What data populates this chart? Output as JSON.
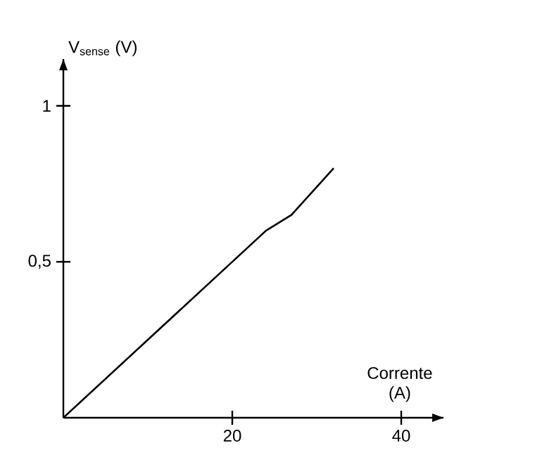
{
  "chart_data": {
    "type": "line",
    "xlabel": "Corrente (A)",
    "ylabel": "V$_{sense}$ (V)",
    "x": [
      0,
      24,
      27,
      32
    ],
    "series": [
      {
        "color": "#000000",
        "values": [
          0,
          0.6,
          0.65,
          0.8
        ]
      }
    ],
    "xlim": [
      0,
      45
    ],
    "ylim": [
      0,
      1.15
    ],
    "xticks": [
      20,
      40
    ],
    "yticks": [
      {
        "value": 0.5,
        "label": "0,5"
      },
      1
    ],
    "grid": false,
    "marker": "none",
    "line_style": "solid"
  }
}
